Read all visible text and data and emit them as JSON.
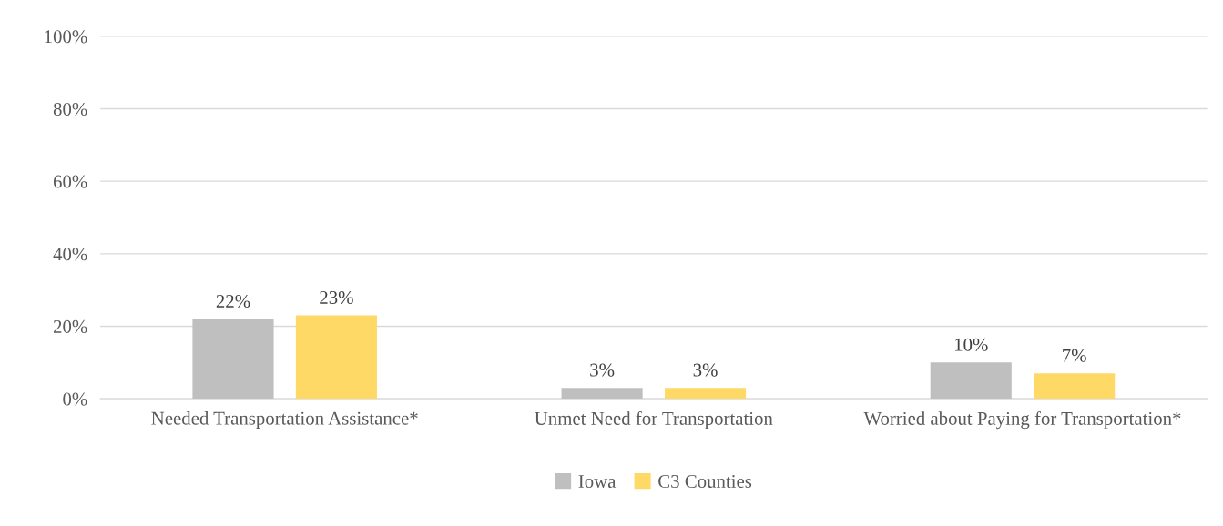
{
  "chart_data": {
    "type": "bar",
    "categories": [
      "Needed Transportation Assistance*",
      "Unmet Need for Transportation",
      "Worried about Paying for Transportation*"
    ],
    "series": [
      {
        "name": "Iowa",
        "color": "#bfbfbf",
        "values": [
          22,
          3,
          10
        ],
        "value_labels": [
          "22%",
          "3%",
          "10%"
        ]
      },
      {
        "name": "C3 Counties",
        "color": "#ffd966",
        "values": [
          23,
          3,
          7
        ],
        "value_labels": [
          "23%",
          "3%",
          "7%"
        ]
      }
    ],
    "ylim": [
      0,
      100
    ],
    "yticks": [
      {
        "value": 0,
        "label": "0%"
      },
      {
        "value": 20,
        "label": "20%"
      },
      {
        "value": 40,
        "label": "40%"
      },
      {
        "value": 60,
        "label": "60%"
      },
      {
        "value": 80,
        "label": "80%"
      },
      {
        "value": 100,
        "label": "100%"
      }
    ],
    "grid": "y",
    "legend": "bottom"
  }
}
